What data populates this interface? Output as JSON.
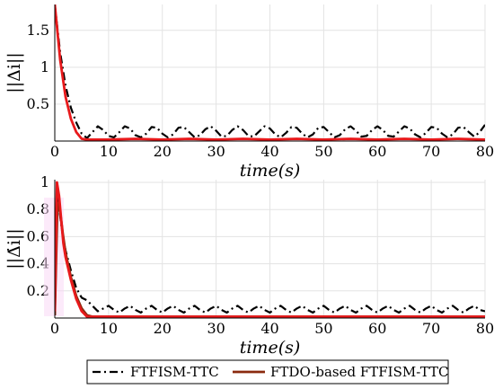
{
  "chart_data": [
    {
      "type": "line",
      "xlabel": "time(s)",
      "ylabel": "||Δi||",
      "xlim": [
        0,
        80
      ],
      "ylim": [
        0,
        1.85
      ],
      "xticks": [
        "0",
        "10",
        "20",
        "30",
        "40",
        "50",
        "60",
        "70",
        "80"
      ],
      "yticks": [
        "0.5",
        "1",
        "1.5"
      ],
      "grid": true,
      "series": [
        {
          "name": "FTFISM-TTC",
          "color": "#000000",
          "style": "dashdot",
          "x": [
            0,
            1,
            2,
            3,
            4,
            5,
            6,
            7,
            8,
            9,
            10,
            11,
            12,
            13,
            14,
            15,
            16,
            17,
            18,
            19,
            20,
            21,
            22,
            23,
            24,
            25,
            26,
            27,
            28,
            29,
            30,
            31,
            32,
            33,
            34,
            35,
            36,
            37,
            38,
            39,
            40,
            41,
            42,
            43,
            44,
            45,
            46,
            47,
            48,
            49,
            50,
            51,
            52,
            53,
            54,
            55,
            56,
            57,
            58,
            59,
            60,
            61,
            62,
            63,
            64,
            65,
            66,
            67,
            68,
            69,
            70,
            71,
            72,
            73,
            74,
            75,
            76,
            77,
            78,
            79,
            80
          ],
          "values": [
            1.85,
            1.2,
            0.75,
            0.45,
            0.25,
            0.1,
            0.04,
            0.12,
            0.2,
            0.15,
            0.07,
            0.05,
            0.12,
            0.2,
            0.17,
            0.08,
            0.05,
            0.1,
            0.19,
            0.18,
            0.1,
            0.05,
            0.09,
            0.18,
            0.19,
            0.12,
            0.05,
            0.08,
            0.16,
            0.2,
            0.14,
            0.06,
            0.07,
            0.15,
            0.2,
            0.15,
            0.07,
            0.06,
            0.13,
            0.2,
            0.17,
            0.09,
            0.05,
            0.11,
            0.19,
            0.18,
            0.1,
            0.05,
            0.09,
            0.18,
            0.19,
            0.12,
            0.05,
            0.08,
            0.16,
            0.2,
            0.14,
            0.06,
            0.07,
            0.15,
            0.2,
            0.15,
            0.07,
            0.06,
            0.13,
            0.2,
            0.17,
            0.09,
            0.05,
            0.11,
            0.19,
            0.18,
            0.1,
            0.05,
            0.09,
            0.18,
            0.19,
            0.12,
            0.06,
            0.12,
            0.22
          ]
        },
        {
          "name": "FTDO-based FTFISM-TTC",
          "color": "#e8191b",
          "style": "solid",
          "x": [
            0,
            1,
            2,
            3,
            4,
            5,
            6,
            7,
            8,
            10,
            15,
            20,
            25,
            30,
            35,
            40,
            45,
            50,
            55,
            60,
            65,
            70,
            75,
            80
          ],
          "values": [
            1.85,
            1.1,
            0.6,
            0.3,
            0.12,
            0.03,
            0.02,
            0.02,
            0.02,
            0.02,
            0.03,
            0.02,
            0.03,
            0.02,
            0.03,
            0.02,
            0.03,
            0.02,
            0.03,
            0.02,
            0.03,
            0.02,
            0.03,
            0.02
          ]
        }
      ]
    },
    {
      "type": "line",
      "xlabel": "time(s)",
      "ylabel": "||Δ̇i||",
      "xlim": [
        0,
        80
      ],
      "ylim": [
        0,
        1.02
      ],
      "xticks": [
        "0",
        "10",
        "20",
        "30",
        "40",
        "50",
        "60",
        "70",
        "80"
      ],
      "yticks": [
        "0.2",
        "0.4",
        "0.6",
        "0.8",
        "1"
      ],
      "grid": true,
      "series": [
        {
          "name": "FTFISM-TTC",
          "color": "#000000",
          "style": "dashdot",
          "x": [
            0,
            0.5,
            1,
            1.5,
            2,
            3,
            4,
            5,
            6,
            7,
            8,
            9,
            10,
            11,
            12,
            13,
            14,
            15,
            16,
            17,
            18,
            19,
            20,
            21,
            22,
            23,
            24,
            25,
            26,
            27,
            28,
            29,
            30,
            31,
            32,
            33,
            34,
            35,
            36,
            37,
            38,
            39,
            40,
            41,
            42,
            43,
            44,
            45,
            46,
            47,
            48,
            49,
            50,
            51,
            52,
            53,
            54,
            55,
            56,
            57,
            58,
            59,
            60,
            61,
            62,
            63,
            64,
            65,
            66,
            67,
            68,
            69,
            70,
            71,
            72,
            73,
            74,
            75,
            76,
            77,
            78,
            79,
            80
          ],
          "values": [
            0.02,
            0.9,
            0.75,
            0.6,
            0.5,
            0.35,
            0.22,
            0.15,
            0.13,
            0.09,
            0.05,
            0.07,
            0.09,
            0.06,
            0.04,
            0.07,
            0.09,
            0.06,
            0.04,
            0.07,
            0.09,
            0.06,
            0.04,
            0.07,
            0.09,
            0.06,
            0.04,
            0.07,
            0.09,
            0.06,
            0.04,
            0.07,
            0.09,
            0.06,
            0.04,
            0.07,
            0.09,
            0.06,
            0.04,
            0.07,
            0.09,
            0.06,
            0.04,
            0.07,
            0.09,
            0.06,
            0.04,
            0.07,
            0.09,
            0.06,
            0.04,
            0.07,
            0.09,
            0.06,
            0.04,
            0.07,
            0.09,
            0.06,
            0.04,
            0.07,
            0.09,
            0.06,
            0.04,
            0.07,
            0.09,
            0.06,
            0.04,
            0.07,
            0.09,
            0.06,
            0.04,
            0.07,
            0.09,
            0.06,
            0.04,
            0.07,
            0.09,
            0.06,
            0.04,
            0.07,
            0.09,
            0.06,
            0.05
          ]
        },
        {
          "name": "FTDO-based FTFISM-TTC",
          "color": "#8a2a0e",
          "style": "solid",
          "x": [
            0,
            0.5,
            1,
            1.5,
            2,
            3,
            4,
            5,
            6,
            7,
            8,
            10,
            20,
            30,
            40,
            50,
            60,
            70,
            80
          ],
          "values": [
            0.02,
            0.85,
            0.78,
            0.62,
            0.48,
            0.3,
            0.16,
            0.07,
            0.02,
            0.01,
            0.01,
            0.01,
            0.01,
            0.01,
            0.01,
            0.01,
            0.01,
            0.01,
            0.01
          ]
        },
        {
          "name": "",
          "color": "#e8191b",
          "style": "solid",
          "x": [
            0,
            0.4,
            0.8,
            1.2,
            1.6,
            2,
            3,
            4,
            5,
            6,
            7,
            8,
            10,
            20,
            30,
            40,
            50,
            60,
            70,
            80
          ],
          "values": [
            0.05,
            1.0,
            0.9,
            0.72,
            0.55,
            0.45,
            0.28,
            0.14,
            0.05,
            0.01,
            0.01,
            0.01,
            0.01,
            0.01,
            0.01,
            0.01,
            0.01,
            0.01,
            0.01,
            0.01
          ]
        }
      ]
    }
  ],
  "legend": {
    "items": [
      {
        "label": "FTFISM-TTC",
        "color": "#000000",
        "style": "dashdot"
      },
      {
        "label": "FTDO-based FTFISM-TTC",
        "color": "#8a2a0e",
        "style": "solid"
      }
    ]
  }
}
